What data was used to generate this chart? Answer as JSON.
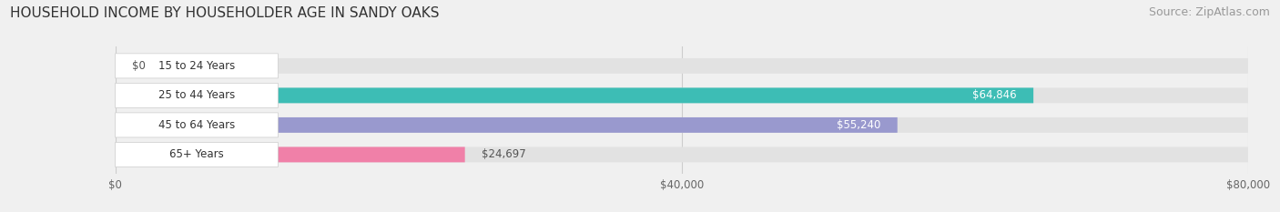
{
  "title": "HOUSEHOLD INCOME BY HOUSEHOLDER AGE IN SANDY OAKS",
  "source": "Source: ZipAtlas.com",
  "categories": [
    "15 to 24 Years",
    "25 to 44 Years",
    "45 to 64 Years",
    "65+ Years"
  ],
  "values": [
    0,
    64846,
    55240,
    24697
  ],
  "bar_colors": [
    "#c9b0d8",
    "#3dbdb5",
    "#9999ce",
    "#f080a8"
  ],
  "label_inside": [
    false,
    true,
    true,
    false
  ],
  "xlim": [
    0,
    80000
  ],
  "xticks": [
    0,
    40000,
    80000
  ],
  "xtick_labels": [
    "$0",
    "$40,000",
    "$80,000"
  ],
  "background_color": "#f0f0f0",
  "bar_bg_color": "#e2e2e2",
  "title_fontsize": 11,
  "source_fontsize": 9,
  "bar_height": 0.52,
  "value_labels": [
    "$0",
    "$64,846",
    "$55,240",
    "$24,697"
  ]
}
